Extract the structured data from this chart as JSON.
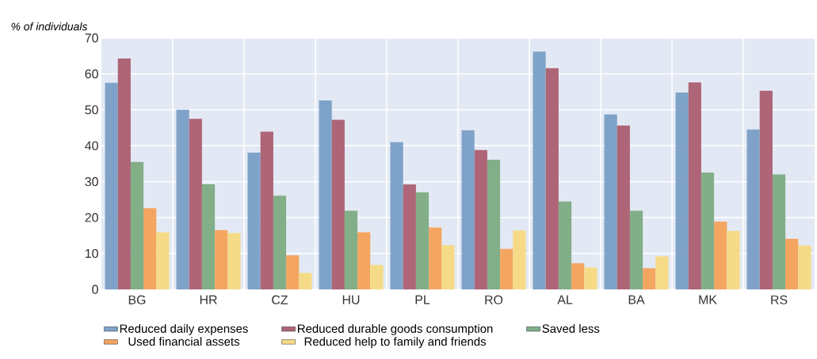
{
  "chart_data": {
    "type": "bar",
    "ylabel": "% of individuals",
    "categories": [
      "BG",
      "HR",
      "CZ",
      "HU",
      "PL",
      "RO",
      "AL",
      "BA",
      "MK",
      "RS"
    ],
    "series": [
      {
        "name": "Reduced daily expenses",
        "color": "#7fa3c8",
        "values": [
          57.5,
          50.0,
          38.1,
          52.6,
          41.0,
          44.3,
          66.2,
          48.7,
          54.8,
          44.5
        ]
      },
      {
        "name": "Reduced durable goods consumption",
        "color": "#ad6577",
        "values": [
          64.3,
          47.5,
          43.9,
          47.2,
          29.2,
          38.8,
          61.6,
          45.6,
          57.6,
          55.3
        ]
      },
      {
        "name": "Saved less",
        "color": "#82af88",
        "values": [
          35.5,
          29.3,
          26.1,
          21.9,
          27.0,
          36.1,
          24.5,
          21.9,
          32.5,
          32.0
        ]
      },
      {
        "name": "Used financial assets",
        "color": "#f4a661",
        "values": [
          22.6,
          16.5,
          9.5,
          15.9,
          17.2,
          11.3,
          7.3,
          5.9,
          18.9,
          14.1
        ]
      },
      {
        "name": "Reduced help to family and friends",
        "color": "#f5db87",
        "values": [
          15.9,
          15.7,
          4.6,
          6.8,
          12.3,
          16.4,
          6.1,
          9.2,
          16.3,
          12.2
        ]
      }
    ],
    "ylim": [
      0,
      70
    ],
    "yticks": [
      0,
      10,
      20,
      30,
      40,
      50,
      60,
      70
    ],
    "grid": true,
    "legend": "bottom"
  }
}
